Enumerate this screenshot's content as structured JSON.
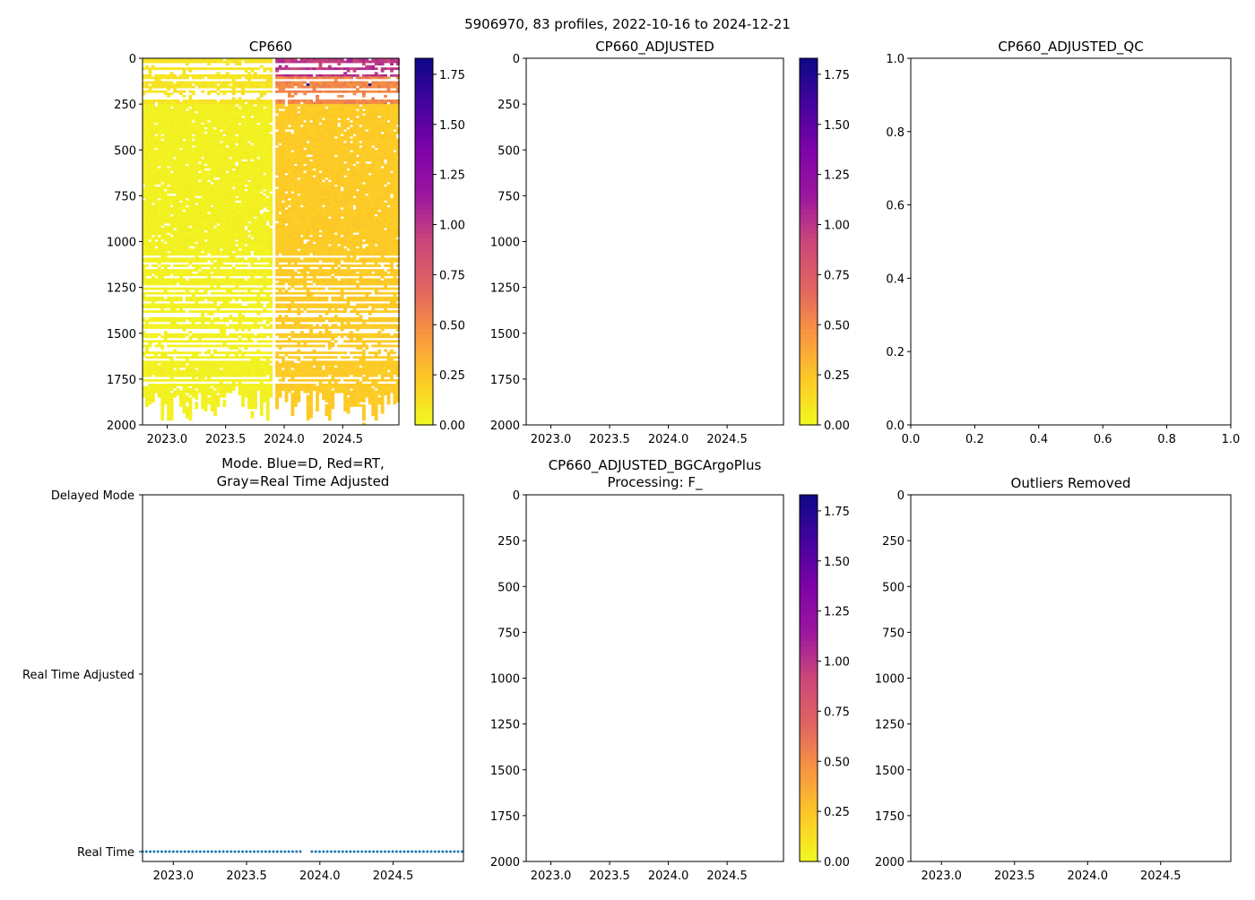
{
  "figure_title": "5906970, 83 profiles, 2022-10-16 to 2024-12-21",
  "chart_data": [
    {
      "type": "heatmap",
      "title": "CP660",
      "xlim": [
        2022.79,
        2024.98
      ],
      "ylim": [
        2000,
        0
      ],
      "xticks": [
        "2023.0",
        "2023.5",
        "2024.0",
        "2024.5"
      ],
      "xtick_values": [
        2023.0,
        2023.5,
        2024.0,
        2024.5
      ],
      "yticks": [
        "0",
        "250",
        "500",
        "750",
        "1000",
        "1250",
        "1500",
        "1750",
        "2000"
      ],
      "ytick_values": [
        0,
        250,
        500,
        750,
        1000,
        1250,
        1500,
        1750,
        2000
      ],
      "colorbar": {
        "colormap": "plasma_r",
        "range": [
          0,
          1.83
        ],
        "ticks": [
          "0.00",
          "0.25",
          "0.50",
          "0.75",
          "1.00",
          "1.25",
          "1.50",
          "1.75"
        ],
        "tick_values": [
          0,
          0.25,
          0.5,
          0.75,
          1.0,
          1.25,
          1.5,
          1.75
        ]
      },
      "n_profiles": 83,
      "data_gap_time": 2023.9,
      "value_summary": {
        "before_2023_9": {
          "surface_0_250m": 0.08,
          "deep": 0.03
        },
        "after_2023_9": {
          "surface_0_100m": 0.9,
          "surface_100_250m": 0.45,
          "deep": 0.2
        },
        "max_spikes": 1.8
      }
    },
    {
      "type": "heatmap",
      "title": "CP660_ADJUSTED",
      "xticks": [
        "2023.0",
        "2023.5",
        "2024.0",
        "2024.5"
      ],
      "yticks": [
        "0",
        "250",
        "500",
        "750",
        "1000",
        "1250",
        "1500",
        "1750",
        "2000"
      ],
      "colorbar": {
        "colormap": "plasma_r",
        "range": [
          0,
          1.83
        ],
        "ticks": [
          "0.00",
          "0.25",
          "0.50",
          "0.75",
          "1.00",
          "1.25",
          "1.50",
          "1.75"
        ]
      },
      "values": []
    },
    {
      "type": "scatter",
      "title": "CP660_ADJUSTED_QC",
      "xlim": [
        0,
        1
      ],
      "ylim": [
        0,
        1
      ],
      "xticks": [
        "0.0",
        "0.2",
        "0.4",
        "0.6",
        "0.8",
        "1.0"
      ],
      "yticks": [
        "0.0",
        "0.2",
        "0.4",
        "0.6",
        "0.8",
        "1.0"
      ],
      "values": []
    },
    {
      "type": "scatter",
      "title_line1": "Mode. Blue=D, Red=RT,",
      "title_line2": "Gray=Real Time Adjusted",
      "xticks": [
        "2023.0",
        "2023.5",
        "2024.0",
        "2024.5"
      ],
      "ycategories": [
        "Real Time",
        "Real Time Adjusted",
        "Delayed Mode"
      ],
      "point_color": "#1f77b4",
      "series": [
        {
          "name": "Real Time",
          "category": "Real Time",
          "n_points": 83,
          "x_range": [
            2022.79,
            2024.97
          ],
          "gap_near": 2023.9
        }
      ]
    },
    {
      "type": "heatmap",
      "title_line1": "CP660_ADJUSTED_BGCArgoPlus",
      "title_line2": "Processing: F_",
      "xticks": [
        "2023.0",
        "2023.5",
        "2024.0",
        "2024.5"
      ],
      "yticks": [
        "0",
        "250",
        "500",
        "750",
        "1000",
        "1250",
        "1500",
        "1750",
        "2000"
      ],
      "colorbar": {
        "colormap": "plasma_r",
        "range": [
          0,
          1.83
        ],
        "ticks": [
          "0.00",
          "0.25",
          "0.50",
          "0.75",
          "1.00",
          "1.25",
          "1.50",
          "1.75"
        ]
      },
      "values": []
    },
    {
      "type": "heatmap",
      "title": "Outliers Removed",
      "xticks": [
        "2023.0",
        "2023.5",
        "2024.0",
        "2024.5"
      ],
      "yticks": [
        "0",
        "250",
        "500",
        "750",
        "1000",
        "1250",
        "1500",
        "1750",
        "2000"
      ],
      "values": []
    }
  ]
}
